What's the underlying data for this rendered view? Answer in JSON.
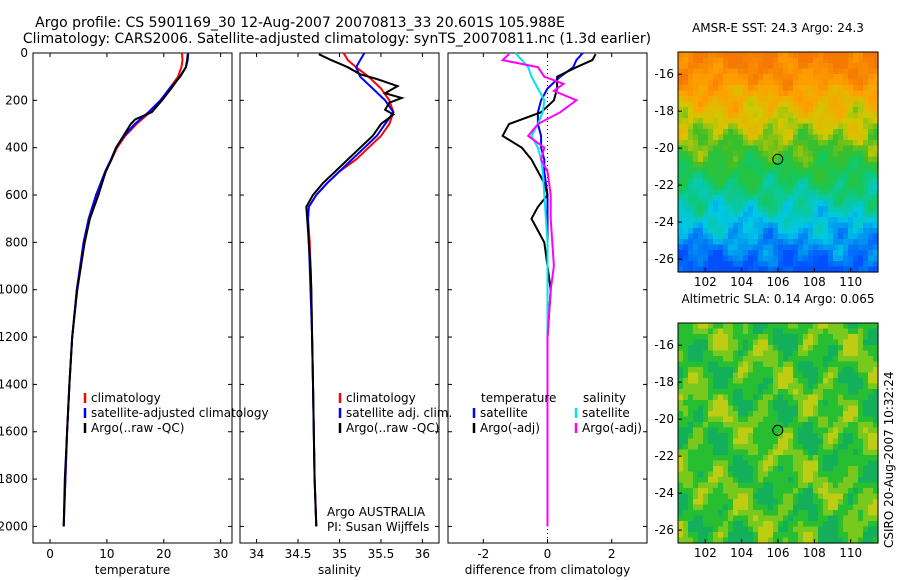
{
  "title": {
    "line1": "Argo profile: CS 5901169_30 12-Aug-2007 20070813_33 20.601S 105.988E",
    "line2": "Climatology: CARS2006. Satellite-adjusted climatology: synTS_20070811.nc (1.3d earlier)"
  },
  "side_label": "CSIRO 20-Aug-2007 10:32:24",
  "colors": {
    "climatology": "#ff0000",
    "satellite": "#0000ff",
    "argo": "#000000",
    "sal_satellite": "#00e5ee",
    "sal_argo": "#ff00ff"
  },
  "chart_data": [
    {
      "id": "temperature",
      "type": "line",
      "xlabel": "temperature",
      "xlim": [
        -3,
        32
      ],
      "xticks": [
        0,
        10,
        20,
        30
      ],
      "ylim": [
        2070,
        0
      ],
      "yticks": [
        0,
        200,
        400,
        600,
        800,
        1000,
        1200,
        1400,
        1600,
        1800,
        2000
      ],
      "legend": [
        "climatology",
        "satellite-adjusted climatology",
        "Argo(..raw -QC)"
      ],
      "series": [
        {
          "name": "climatology",
          "color": "#ff0000",
          "depth": [
            0,
            30,
            60,
            100,
            150,
            200,
            250,
            300,
            350,
            400,
            450,
            500,
            600,
            700,
            800,
            1000,
            1200,
            1400,
            1600,
            1800,
            2000
          ],
          "values": [
            23.2,
            23.3,
            23.1,
            22.5,
            21.0,
            19.6,
            17.6,
            15.2,
            13.2,
            11.8,
            10.8,
            9.8,
            8.1,
            6.8,
            5.9,
            4.7,
            3.9,
            3.4,
            3.0,
            2.7,
            2.4
          ]
        },
        {
          "name": "satellite",
          "color": "#0000ff",
          "depth": [
            0,
            30,
            60,
            100,
            150,
            200,
            250,
            300,
            350,
            400,
            450,
            500,
            600,
            700,
            800,
            1000,
            1200,
            1400,
            1600,
            1800,
            2000
          ],
          "values": [
            24.3,
            24.2,
            23.9,
            22.9,
            21.0,
            19.4,
            17.3,
            14.9,
            13.0,
            11.6,
            10.7,
            9.7,
            8.1,
            6.8,
            5.9,
            4.7,
            3.9,
            3.4,
            3.0,
            2.7,
            2.4
          ]
        },
        {
          "name": "argo",
          "color": "#000000",
          "depth": [
            5,
            30,
            60,
            100,
            150,
            200,
            250,
            280,
            300,
            350,
            400,
            450,
            500,
            600,
            700,
            800,
            1000,
            1200,
            1400,
            1600,
            1800,
            2000
          ],
          "values": [
            24.2,
            24.1,
            23.9,
            22.8,
            21.3,
            19.7,
            17.9,
            15.0,
            14.2,
            12.9,
            11.6,
            10.8,
            9.8,
            8.5,
            7.0,
            6.1,
            4.8,
            3.9,
            3.4,
            3.0,
            2.6,
            2.4
          ]
        }
      ]
    },
    {
      "id": "salinity",
      "type": "line",
      "xlabel": "salinity",
      "xlim": [
        33.8,
        36.2
      ],
      "xticks": [
        34,
        34.5,
        35,
        35.5,
        36
      ],
      "ylim": [
        2070,
        0
      ],
      "legend": [
        "climatology",
        "satellite adj. clim.",
        "Argo(..raw -QC)"
      ],
      "annotation": [
        "Argo AUSTRALIA",
        "PI: Susan Wijffels"
      ],
      "series": [
        {
          "name": "climatology",
          "color": "#ff0000",
          "depth": [
            0,
            30,
            60,
            100,
            150,
            200,
            250,
            300,
            350,
            400,
            450,
            500,
            550,
            600,
            650,
            700,
            800,
            900,
            1000,
            1200,
            1400,
            1600,
            1800,
            2000
          ],
          "values": [
            35.05,
            35.1,
            35.2,
            35.35,
            35.5,
            35.6,
            35.65,
            35.6,
            35.5,
            35.35,
            35.2,
            35.0,
            34.85,
            34.72,
            34.63,
            34.62,
            34.64,
            34.65,
            34.66,
            34.67,
            34.68,
            34.69,
            34.7,
            34.72
          ]
        },
        {
          "name": "satellite",
          "color": "#0000ff",
          "depth": [
            0,
            30,
            60,
            100,
            150,
            200,
            250,
            300,
            350,
            400,
            450,
            500,
            550,
            600,
            650,
            700,
            800,
            900,
            1000,
            1200,
            1400,
            1600,
            1800,
            2000
          ],
          "values": [
            35.3,
            35.25,
            35.2,
            35.25,
            35.4,
            35.55,
            35.65,
            35.55,
            35.45,
            35.3,
            35.15,
            35.0,
            34.85,
            34.72,
            34.63,
            34.62,
            34.63,
            34.64,
            34.65,
            34.67,
            34.68,
            34.69,
            34.7,
            34.72
          ]
        },
        {
          "name": "argo",
          "color": "#000000",
          "depth": [
            5,
            30,
            60,
            90,
            110,
            140,
            170,
            190,
            210,
            240,
            260,
            300,
            350,
            400,
            450,
            500,
            550,
            600,
            650,
            700,
            800,
            900,
            1000,
            1200,
            1400,
            1600,
            1800,
            2000
          ],
          "values": [
            34.75,
            34.9,
            35.1,
            35.25,
            35.45,
            35.7,
            35.55,
            35.75,
            35.6,
            35.55,
            35.65,
            35.5,
            35.4,
            35.25,
            35.1,
            34.95,
            34.8,
            34.68,
            34.6,
            34.61,
            34.63,
            34.65,
            34.66,
            34.67,
            34.68,
            34.69,
            34.7,
            34.72
          ]
        }
      ]
    },
    {
      "id": "difference",
      "type": "line",
      "xlabel": "difference from climatology",
      "xlim": [
        -3.1,
        3.1
      ],
      "xticks": [
        -2,
        0,
        2
      ],
      "ylim": [
        2070,
        0
      ],
      "legend_left": {
        "heading": "temperature",
        "items": [
          "satellite",
          "Argo(-adj)"
        ]
      },
      "legend_right": {
        "heading": "salinity",
        "items": [
          "satellite",
          "Argo(-adj)"
        ]
      },
      "series": [
        {
          "name": "temperature satellite",
          "color": "#0000ff",
          "depth": [
            0,
            30,
            60,
            100,
            150,
            200,
            250,
            300,
            350,
            400,
            450,
            500,
            600,
            700,
            800,
            1000,
            1200,
            1400,
            1600,
            1800,
            2000
          ],
          "values": [
            1.1,
            0.9,
            0.8,
            0.4,
            0.0,
            -0.2,
            -0.3,
            -0.3,
            -0.2,
            -0.2,
            -0.1,
            -0.1,
            0.0,
            0.0,
            0.0,
            0.0,
            0.0,
            0.0,
            0.0,
            0.0,
            0.0
          ]
        },
        {
          "name": "temperature argo",
          "color": "#000000",
          "depth": [
            5,
            30,
            60,
            100,
            150,
            200,
            250,
            300,
            350,
            400,
            450,
            500,
            550,
            600,
            650,
            700,
            750,
            800,
            900,
            1000,
            1200,
            1400,
            1600,
            1800,
            2000
          ],
          "values": [
            1.5,
            1.4,
            0.9,
            0.3,
            0.3,
            0.2,
            -0.2,
            -1.2,
            -1.4,
            -0.8,
            -0.5,
            -0.3,
            -0.1,
            0.0,
            -0.3,
            -0.5,
            -0.3,
            -0.1,
            0.0,
            0.1,
            0.0,
            0.0,
            0.0,
            0.0,
            0.0
          ]
        },
        {
          "name": "salinity satellite",
          "color": "#00e5ee",
          "depth": [
            0,
            30,
            60,
            100,
            150,
            200,
            250,
            300,
            350,
            400,
            450,
            500,
            600,
            700,
            800,
            1000,
            1200,
            1400,
            1600,
            1800,
            2000
          ],
          "values": [
            -1.0,
            -0.8,
            -0.6,
            -0.5,
            -0.3,
            -0.1,
            -0.15,
            -0.3,
            -0.5,
            -0.3,
            -0.2,
            -0.15,
            -0.1,
            -0.05,
            0.0,
            0.0,
            0.0,
            0.0,
            0.0,
            0.0,
            0.0
          ]
        },
        {
          "name": "salinity argo",
          "color": "#ff00ff",
          "depth": [
            5,
            30,
            60,
            100,
            130,
            160,
            200,
            250,
            300,
            350,
            400,
            450,
            500,
            600,
            700,
            800,
            900,
            1000,
            1200,
            1400,
            1600,
            1800,
            2000
          ],
          "values": [
            -1.2,
            -1.4,
            -0.3,
            -0.1,
            0.5,
            0.2,
            0.9,
            0.4,
            -0.3,
            -0.6,
            -0.1,
            -0.2,
            0.0,
            0.1,
            0.1,
            0.15,
            0.2,
            0.1,
            0.0,
            0.0,
            0.0,
            0.0,
            0.0
          ]
        }
      ]
    },
    {
      "id": "sst_map",
      "type": "heatmap",
      "title": "AMSR-E SST: 24.3  Argo: 24.3",
      "xticks": [
        102,
        104,
        106,
        108,
        110
      ],
      "yticks": [
        -16,
        -18,
        -20,
        -22,
        -24,
        -26
      ],
      "xlim": [
        100.5,
        111.5
      ],
      "ylim": [
        -26.7,
        -14.8
      ],
      "marker": {
        "lon": 105.988,
        "lat": -20.601
      }
    },
    {
      "id": "sla_map",
      "type": "heatmap",
      "title": "Altimetric SLA: 0.14  Argo: 0.065",
      "xticks": [
        102,
        104,
        106,
        108,
        110
      ],
      "yticks": [
        -16,
        -18,
        -20,
        -22,
        -24,
        -26
      ],
      "xlim": [
        100.5,
        111.5
      ],
      "ylim": [
        -26.7,
        -14.8
      ],
      "marker": {
        "lon": 105.988,
        "lat": -20.601
      }
    }
  ]
}
